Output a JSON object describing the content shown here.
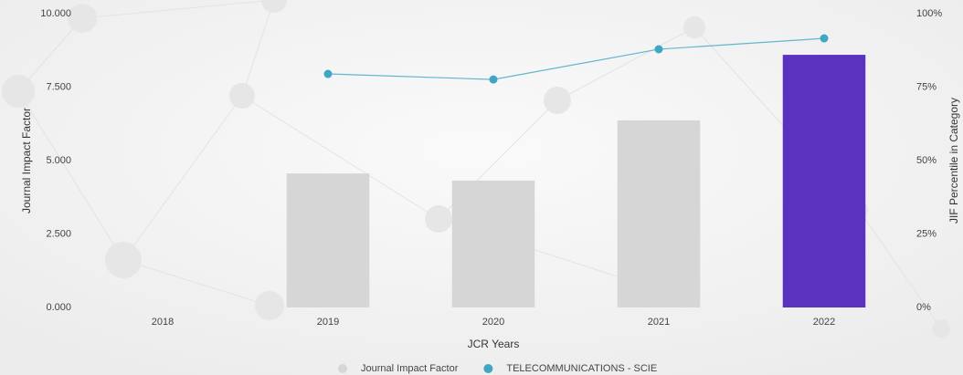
{
  "chart_data": {
    "type": "bar",
    "categories": [
      "2018",
      "2019",
      "2020",
      "2021",
      "2022"
    ],
    "series": [
      {
        "name": "Journal Impact Factor",
        "type": "bar",
        "color": "#d6d6d6",
        "axis": "y",
        "colors": [
          "#d6d6d6",
          "#d6d6d6",
          "#d6d6d6",
          "#d6d6d6",
          "#5b32c0"
        ],
        "values": [
          null,
          4.56,
          4.32,
          6.37,
          8.6
        ]
      },
      {
        "name": "TELECOMMUNICATIONS - SCIE",
        "type": "line",
        "color": "#3fa6c4",
        "axis": "y2",
        "values": [
          null,
          79.5,
          77.6,
          87.9,
          91.6
        ]
      }
    ],
    "xlabel": "JCR Years",
    "ylabel": "Journal Impact Factor",
    "y2label": "JIF Percentile in Category",
    "ylim": [
      0,
      10
    ],
    "yticks": [
      {
        "value": 0,
        "label": "0.000"
      },
      {
        "value": 2.5,
        "label": "2.500"
      },
      {
        "value": 5,
        "label": "5.000"
      },
      {
        "value": 7.5,
        "label": "7.500"
      },
      {
        "value": 10,
        "label": "10.000"
      }
    ],
    "y2lim": [
      0,
      100
    ],
    "y2ticks": [
      {
        "value": 0,
        "label": "0%"
      },
      {
        "value": 25,
        "label": "25%"
      },
      {
        "value": 50,
        "label": "50%"
      },
      {
        "value": 75,
        "label": "75%"
      },
      {
        "value": 100,
        "label": "100%"
      }
    ],
    "legend": "bottom"
  }
}
